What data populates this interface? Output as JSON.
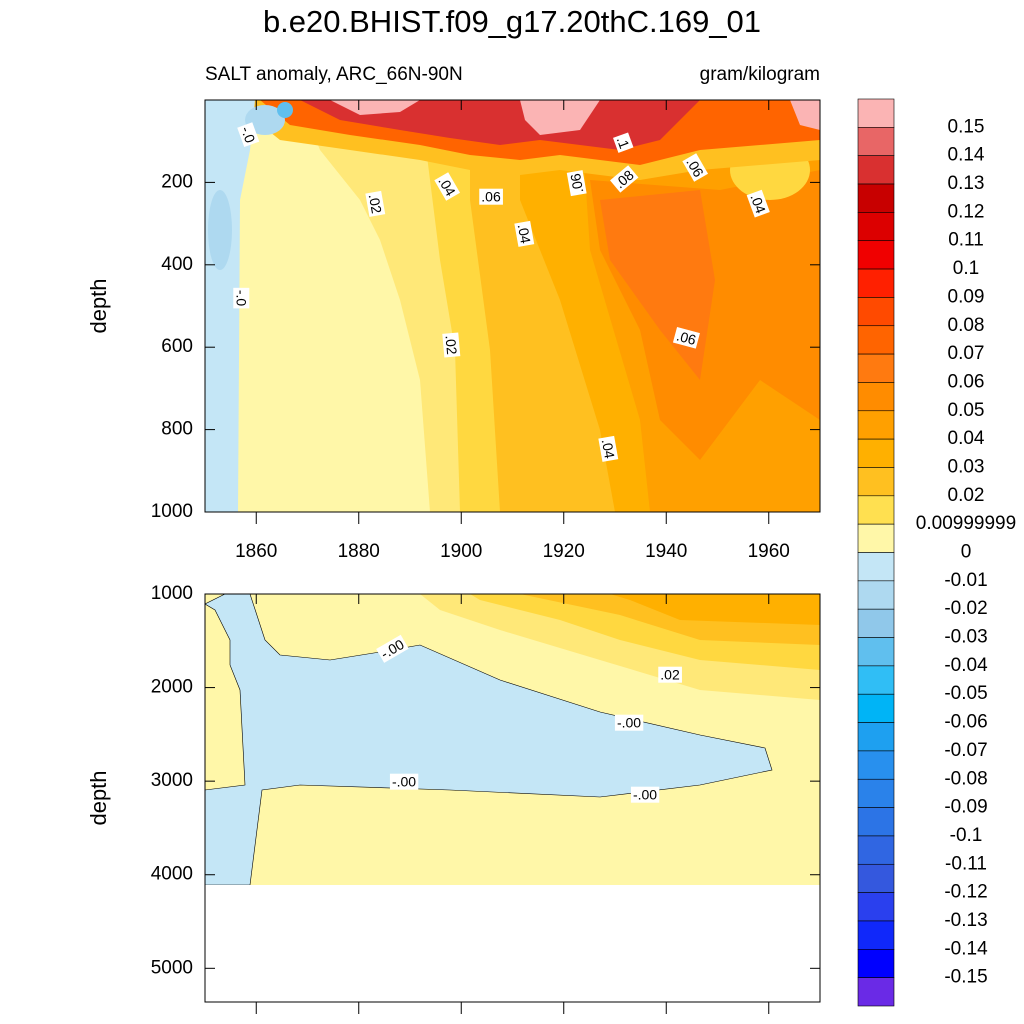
{
  "title": "b.e20.BHIST.f09_g17.20thC.169_01",
  "chart_data": [
    {
      "type": "contour",
      "subtitle": "SALT anomaly, ARC_66N-90N",
      "units": "gram/kilogram",
      "ylabel": "depth",
      "xlim": [
        1850,
        1970
      ],
      "xticks": [
        1860,
        1880,
        1900,
        1920,
        1940,
        1960
      ],
      "ylim": [
        0,
        1000
      ],
      "yticks": [
        200,
        400,
        600,
        800,
        1000
      ],
      "y_reversed": true,
      "contour_labels": [
        "-.0",
        ".02",
        ".04",
        ".06",
        ".04",
        ".06",
        ".1",
        ".08",
        ".06",
        ".04",
        "-.0",
        ".02",
        ".06",
        ".04"
      ]
    },
    {
      "type": "contour",
      "ylabel": "depth",
      "xlim": [
        1850,
        1970
      ],
      "xticks": [
        1860,
        1880,
        1900,
        1920,
        1940,
        1960
      ],
      "ylim": [
        1000,
        5360
      ],
      "yticks": [
        1000,
        2000,
        3000,
        4000,
        5000
      ],
      "y_reversed": true,
      "contour_labels": [
        "-.00",
        ".02",
        "-.00",
        "-.00",
        "-.00"
      ]
    }
  ],
  "colorbar": {
    "levels": [
      0.15,
      0.14,
      0.13,
      0.12,
      0.11,
      0.1,
      0.09,
      0.08,
      0.07,
      0.06,
      0.05,
      0.04,
      0.03,
      0.02,
      0.00999999,
      0,
      -0.01,
      -0.02,
      -0.03,
      -0.04,
      -0.05,
      -0.06,
      -0.07,
      -0.08,
      -0.09,
      -0.1,
      -0.11,
      -0.12,
      -0.13,
      -0.14,
      -0.15
    ],
    "colors": [
      "#fbb4b4",
      "#e86666",
      "#d93030",
      "#c80000",
      "#dc0000",
      "#f00000",
      "#ff2000",
      "#ff4a00",
      "#ff6400",
      "#ff7a10",
      "#ff8c00",
      "#ffa000",
      "#ffb000",
      "#ffc020",
      "#ffe050",
      "#fff7a8",
      "#c4e6f6",
      "#aed9f0",
      "#90c8ea",
      "#60bfee",
      "#30bef5",
      "#00b4f6",
      "#1ea0f0",
      "#2890ee",
      "#2a82ea",
      "#2c74e6",
      "#3066e2",
      "#3458de",
      "#2a40ee",
      "#1028fa",
      "#0000ff",
      "#6a2ae6"
    ]
  }
}
